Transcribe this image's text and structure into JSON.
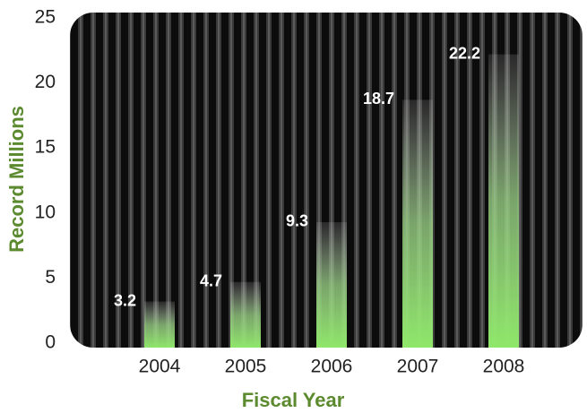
{
  "chart_data": {
    "type": "bar",
    "x_label": "Fiscal Year",
    "y_label": "Record Millions",
    "categories": [
      "2004",
      "2005",
      "2006",
      "2007",
      "2008"
    ],
    "values": [
      3.2,
      4.7,
      9.3,
      18.7,
      22.2
    ],
    "color": "#86e05c",
    "ylim": [
      0,
      25
    ],
    "yticks": [
      0,
      5,
      10,
      15,
      20,
      25
    ]
  }
}
